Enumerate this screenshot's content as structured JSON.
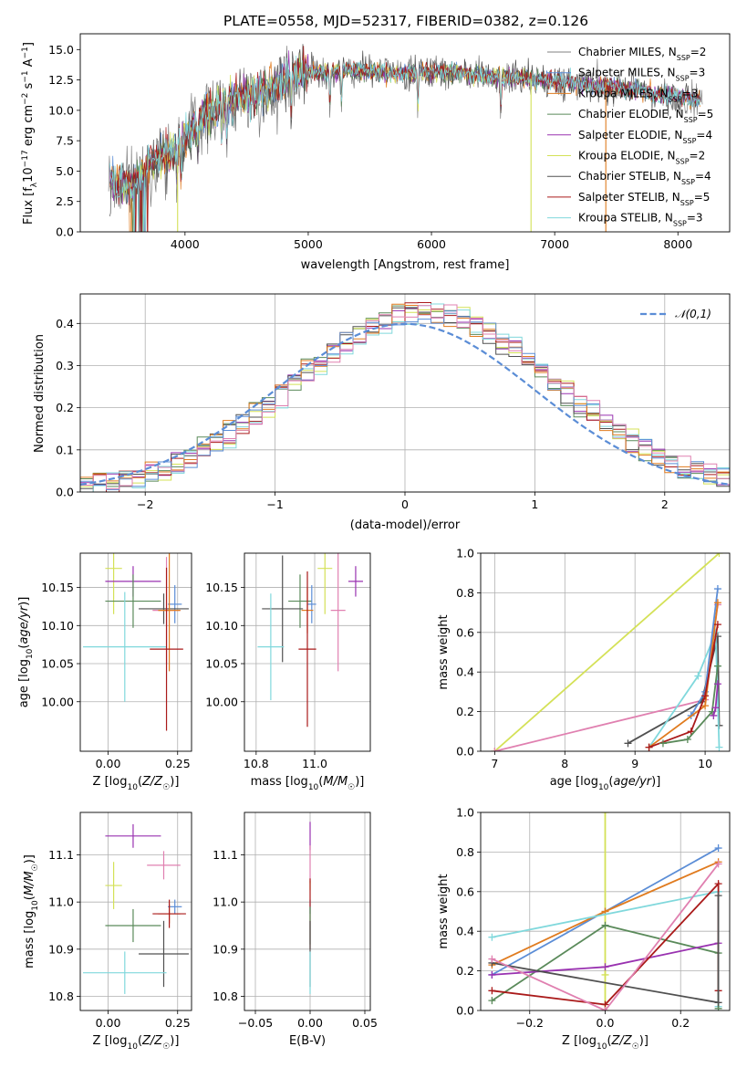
{
  "figure": {
    "title": "PLATE=0558, MJD=52317, FIBERID=0382, z=0.126"
  },
  "chart_data": [
    {
      "id": "spectrum",
      "type": "line",
      "title": "PLATE=0558, MJD=52317, FIBERID=0382, z=0.126",
      "xlabel": "wavelength [Angstrom, rest frame]",
      "ylabel": "Flux [f_λ 10^-17 erg cm^-2 s^-1 A^-1]",
      "xlim": [
        3150,
        8420
      ],
      "ylim": [
        0,
        16.3
      ],
      "xticks": [
        4000,
        5000,
        6000,
        7000,
        8000
      ],
      "yticks": [
        0.0,
        2.5,
        5.0,
        7.5,
        10.0,
        12.5,
        15.0
      ],
      "grid": false,
      "legend_position": "top-right",
      "continuum": {
        "x": [
          3380,
          3450,
          3550,
          3650,
          3750,
          3850,
          3950,
          4050,
          4150,
          4300,
          4450,
          4600,
          4750,
          4850,
          4950,
          5100,
          5300,
          5500,
          5700,
          5900,
          6100,
          6300,
          6500,
          6700,
          6900,
          7100,
          7300,
          7500,
          7700,
          7900,
          8100,
          8200
        ],
        "y": [
          4.2,
          4.0,
          3.8,
          4.6,
          5.8,
          6.3,
          7.2,
          8.4,
          9.6,
          10.6,
          11.1,
          11.6,
          12.2,
          12.8,
          13.2,
          13.1,
          13.3,
          13.2,
          13.0,
          13.1,
          13.2,
          13.0,
          12.8,
          12.7,
          12.5,
          12.3,
          12.1,
          11.9,
          11.6,
          11.3,
          11.0,
          10.9
        ]
      },
      "series": [
        {
          "name": "Chabrier MILES, N_SSP=2",
          "color": "#808080"
        },
        {
          "name": "Salpeter MILES, N_SSP=3",
          "color": "#5b8dd6"
        },
        {
          "name": "Kroupa MILES, N_SSP=3",
          "color": "#e07b1f"
        },
        {
          "name": "Chabrier ELODIE, N_SSP=5",
          "color": "#5a8a5a"
        },
        {
          "name": "Salpeter ELODIE, N_SSP=4",
          "color": "#9932b0"
        },
        {
          "name": "Kroupa ELODIE, N_SSP=2",
          "color": "#d4e157"
        },
        {
          "name": "Chabrier STELIB, N_SSP=4",
          "color": "#505050"
        },
        {
          "name": "Salpeter STELIB, N_SSP=5",
          "color": "#aa1a1a"
        },
        {
          "name": "Kroupa STELIB, N_SSP=3",
          "color": "#80d8dc"
        }
      ]
    },
    {
      "id": "residuals",
      "type": "line",
      "xlabel": "(data-model)/error",
      "ylabel": "Normed distribution",
      "xlim": [
        -2.5,
        2.5
      ],
      "ylim": [
        0,
        0.47
      ],
      "xticks": [
        -2,
        -1,
        0,
        1,
        2
      ],
      "yticks": [
        0.0,
        0.1,
        0.2,
        0.3,
        0.4
      ],
      "grid": true,
      "legend_position": "top-right",
      "legend_label": "𝒩(0,1)",
      "gaussian_color": "#5b8dd6",
      "hist_colors": [
        "#5a8a5a",
        "#9932b0",
        "#d4e157",
        "#505050",
        "#aa1a1a",
        "#80d8dc",
        "#e07b1f",
        "#5b8dd6",
        "#e080b0"
      ],
      "bin_width": 0.1
    },
    {
      "id": "age-vs-Z",
      "type": "scatter",
      "xlabel": "Z [log10(Z/Z☉)]",
      "ylabel": "age [log10(age/yr)]",
      "xlim": [
        -0.1,
        0.3
      ],
      "ylim": [
        9.935,
        10.195
      ],
      "xticks": [
        0.0,
        0.25
      ],
      "yticks": [
        10.0,
        10.05,
        10.1,
        10.15
      ],
      "grid": true,
      "points": [
        {
          "x": 0.02,
          "y": 10.175,
          "xerr": 0.03,
          "yerr": 0.06,
          "color": "#d4e157"
        },
        {
          "x": 0.09,
          "y": 10.158,
          "xerr": 0.1,
          "yerr": 0.02,
          "color": "#9932b0"
        },
        {
          "x": 0.09,
          "y": 10.132,
          "xerr": 0.1,
          "yerr": 0.035,
          "color": "#5a8a5a"
        },
        {
          "x": 0.24,
          "y": 10.128,
          "xerr": 0.025,
          "yerr": 0.025,
          "color": "#5b8dd6"
        },
        {
          "x": 0.2,
          "y": 10.122,
          "xerr": 0.09,
          "yerr": 0.02,
          "color": "#505050"
        },
        {
          "x": 0.21,
          "y": 10.12,
          "xerr": 0.05,
          "yerr": 0.07,
          "color": "#e080b0"
        },
        {
          "x": 0.22,
          "y": 10.12,
          "xerr": 0.04,
          "yerr": 0.08,
          "color": "#e07b1f"
        },
        {
          "x": 0.06,
          "y": 10.072,
          "xerr": 0.15,
          "yerr": 0.072,
          "color": "#80d8dc"
        },
        {
          "x": 0.21,
          "y": 10.069,
          "xerr": 0.06,
          "yerr": 0.107,
          "color": "#aa1a1a"
        }
      ]
    },
    {
      "id": "age-vs-mass",
      "type": "scatter",
      "xlabel": "mass [log10(M/M☉)]",
      "ylabel": "",
      "xlim": [
        10.76,
        11.19
      ],
      "ylim": [
        9.935,
        10.195
      ],
      "xticks": [
        10.8,
        11.0
      ],
      "yticks": [
        10.0,
        10.05,
        10.1,
        10.15
      ],
      "grid": true,
      "points": [
        {
          "x": 11.035,
          "y": 10.175,
          "xerr": 0.025,
          "yerr": 0.06,
          "color": "#d4e157"
        },
        {
          "x": 11.14,
          "y": 10.158,
          "xerr": 0.025,
          "yerr": 0.02,
          "color": "#9932b0"
        },
        {
          "x": 10.95,
          "y": 10.132,
          "xerr": 0.04,
          "yerr": 0.035,
          "color": "#5a8a5a"
        },
        {
          "x": 10.99,
          "y": 10.128,
          "xerr": 0.015,
          "yerr": 0.025,
          "color": "#5b8dd6"
        },
        {
          "x": 10.89,
          "y": 10.122,
          "xerr": 0.07,
          "yerr": 0.07,
          "color": "#505050"
        },
        {
          "x": 11.08,
          "y": 10.12,
          "xerr": 0.025,
          "yerr": 0.08,
          "color": "#e080b0"
        },
        {
          "x": 10.975,
          "y": 10.12,
          "xerr": 0.02,
          "yerr": 0.03,
          "color": "#e07b1f"
        },
        {
          "x": 10.85,
          "y": 10.072,
          "xerr": 0.045,
          "yerr": 0.07,
          "color": "#80d8dc"
        },
        {
          "x": 10.975,
          "y": 10.069,
          "xerr": 0.03,
          "yerr": 0.102,
          "color": "#aa1a1a"
        }
      ]
    },
    {
      "id": "weight-vs-age",
      "type": "line",
      "xlabel": "age [log10(age/yr)]",
      "ylabel": "mass weight",
      "xlim": [
        6.8,
        10.35
      ],
      "ylim": [
        0,
        1.0
      ],
      "xticks": [
        7,
        8,
        9,
        10
      ],
      "yticks": [
        0.0,
        0.2,
        0.4,
        0.6,
        0.8,
        1.0
      ],
      "grid": true,
      "series": [
        {
          "color": "#d4e157",
          "x": [
            7.0,
            10.2
          ],
          "y": [
            0.0,
            1.0
          ]
        },
        {
          "color": "#e080b0",
          "x": [
            7.0,
            10.0,
            10.18
          ],
          "y": [
            0.0,
            0.26,
            0.74
          ]
        },
        {
          "color": "#505050",
          "x": [
            8.9,
            9.95,
            10.18,
            10.2
          ],
          "y": [
            0.04,
            0.25,
            0.58,
            0.13
          ]
        },
        {
          "color": "#80d8dc",
          "x": [
            9.2,
            9.9,
            10.15,
            10.2
          ],
          "y": [
            0.02,
            0.38,
            0.6,
            0.02
          ]
        },
        {
          "color": "#5b8dd6",
          "x": [
            9.8,
            10.0,
            10.18
          ],
          "y": [
            0.18,
            0.3,
            0.82
          ]
        },
        {
          "color": "#e07b1f",
          "x": [
            9.2,
            10.0,
            10.18
          ],
          "y": [
            0.02,
            0.23,
            0.75
          ]
        },
        {
          "color": "#aa1a1a",
          "x": [
            9.2,
            9.8,
            10.0,
            10.18
          ],
          "y": [
            0.02,
            0.1,
            0.28,
            0.64
          ]
        },
        {
          "color": "#5a8a5a",
          "x": [
            9.4,
            9.75,
            10.1,
            10.18
          ],
          "y": [
            0.04,
            0.06,
            0.2,
            0.43
          ]
        },
        {
          "color": "#9932b0",
          "x": [
            10.12,
            10.15,
            10.18
          ],
          "y": [
            0.18,
            0.22,
            0.34
          ]
        }
      ]
    },
    {
      "id": "mass-vs-Z",
      "type": "scatter",
      "xlabel": "Z [log10(Z/Z☉)]",
      "ylabel": "mass [log10(M/M☉)]",
      "xlim": [
        -0.1,
        0.3
      ],
      "ylim": [
        10.77,
        11.19
      ],
      "xticks": [
        0.0,
        0.25
      ],
      "yticks": [
        10.8,
        10.9,
        11.0,
        11.1
      ],
      "grid": true,
      "points": [
        {
          "x": 0.02,
          "y": 11.035,
          "xerr": 0.03,
          "yerr": 0.05,
          "color": "#d4e157"
        },
        {
          "x": 0.09,
          "y": 11.14,
          "xerr": 0.1,
          "yerr": 0.025,
          "color": "#9932b0"
        },
        {
          "x": 0.09,
          "y": 10.95,
          "xerr": 0.1,
          "yerr": 0.035,
          "color": "#5a8a5a"
        },
        {
          "x": 0.24,
          "y": 10.99,
          "xerr": 0.025,
          "yerr": 0.015,
          "color": "#5b8dd6"
        },
        {
          "x": 0.2,
          "y": 10.89,
          "xerr": 0.09,
          "yerr": 0.07,
          "color": "#505050"
        },
        {
          "x": 0.2,
          "y": 11.078,
          "xerr": 0.06,
          "yerr": 0.03,
          "color": "#e080b0"
        },
        {
          "x": 0.22,
          "y": 10.975,
          "xerr": 0.04,
          "yerr": 0.02,
          "color": "#e07b1f"
        },
        {
          "x": 0.06,
          "y": 10.85,
          "xerr": 0.15,
          "yerr": 0.045,
          "color": "#80d8dc"
        },
        {
          "x": 0.22,
          "y": 10.975,
          "xerr": 0.06,
          "yerr": 0.03,
          "color": "#aa1a1a"
        }
      ]
    },
    {
      "id": "mass-vs-EBV",
      "type": "scatter",
      "xlabel": "E(B-V)",
      "ylabel": "",
      "xlim": [
        -0.06,
        0.055
      ],
      "ylim": [
        10.77,
        11.19
      ],
      "xticks": [
        -0.05,
        0.0,
        0.05
      ],
      "yticks": [
        10.8,
        10.9,
        11.0,
        11.1
      ],
      "grid": true,
      "points": [
        {
          "x": 0.0,
          "y": 11.14,
          "xerr": 0.0,
          "yerr": 0.03,
          "color": "#9932b0"
        },
        {
          "x": 0.0,
          "y": 11.08,
          "xerr": 0.0,
          "yerr": 0.04,
          "color": "#e080b0"
        },
        {
          "x": 0.0,
          "y": 11.035,
          "xerr": 0.0,
          "yerr": 0.01,
          "color": "#d4e157"
        },
        {
          "x": 0.0,
          "y": 10.99,
          "xerr": 0.0,
          "yerr": 0.015,
          "color": "#5b8dd6"
        },
        {
          "x": 0.0,
          "y": 10.975,
          "xerr": 0.0,
          "yerr": 0.075,
          "color": "#aa1a1a"
        },
        {
          "x": 0.0,
          "y": 10.95,
          "xerr": 0.0,
          "yerr": 0.04,
          "color": "#5a8a5a"
        },
        {
          "x": 0.0,
          "y": 10.89,
          "xerr": 0.0,
          "yerr": 0.07,
          "color": "#505050"
        },
        {
          "x": 0.0,
          "y": 10.85,
          "xerr": 0.0,
          "yerr": 0.045,
          "color": "#80d8dc"
        }
      ]
    },
    {
      "id": "weight-vs-Z",
      "type": "line",
      "xlabel": "Z [log10(Z/Z☉)]",
      "ylabel": "mass weight",
      "xlim": [
        -0.33,
        0.33
      ],
      "ylim": [
        0,
        1.0
      ],
      "xticks": [
        -0.2,
        0.0,
        0.2
      ],
      "yticks": [
        0.0,
        0.2,
        0.4,
        0.6,
        0.8,
        1.0
      ],
      "grid": true,
      "series": [
        {
          "color": "#d4e157",
          "x": [
            0.0,
            0.0,
            0.0
          ],
          "y": [
            1.0,
            0.0,
            0.18
          ]
        },
        {
          "color": "#5b8dd6",
          "x": [
            -0.3,
            0.0,
            0.3
          ],
          "y": [
            0.18,
            0.5,
            0.82
          ]
        },
        {
          "color": "#e07b1f",
          "x": [
            -0.3,
            0.0,
            0.3
          ],
          "y": [
            0.23,
            0.5,
            0.75
          ]
        },
        {
          "color": "#80d8dc",
          "x": [
            -0.3,
            0.3,
            0.3
          ],
          "y": [
            0.37,
            0.6,
            0.02
          ]
        },
        {
          "color": "#5a8a5a",
          "x": [
            -0.3,
            0.0,
            0.3,
            0.3
          ],
          "y": [
            0.05,
            0.43,
            0.29,
            0.01
          ]
        },
        {
          "color": "#9932b0",
          "x": [
            -0.3,
            0.0,
            0.3
          ],
          "y": [
            0.18,
            0.22,
            0.34
          ]
        },
        {
          "color": "#aa1a1a",
          "x": [
            -0.3,
            0.0,
            0.3,
            0.3
          ],
          "y": [
            0.1,
            0.03,
            0.64,
            0.1
          ]
        },
        {
          "color": "#505050",
          "x": [
            -0.3,
            0.3,
            0.3
          ],
          "y": [
            0.24,
            0.04,
            0.58
          ]
        },
        {
          "color": "#e080b0",
          "x": [
            -0.3,
            0.0,
            0.3
          ],
          "y": [
            0.26,
            0.0,
            0.74
          ]
        }
      ]
    }
  ]
}
